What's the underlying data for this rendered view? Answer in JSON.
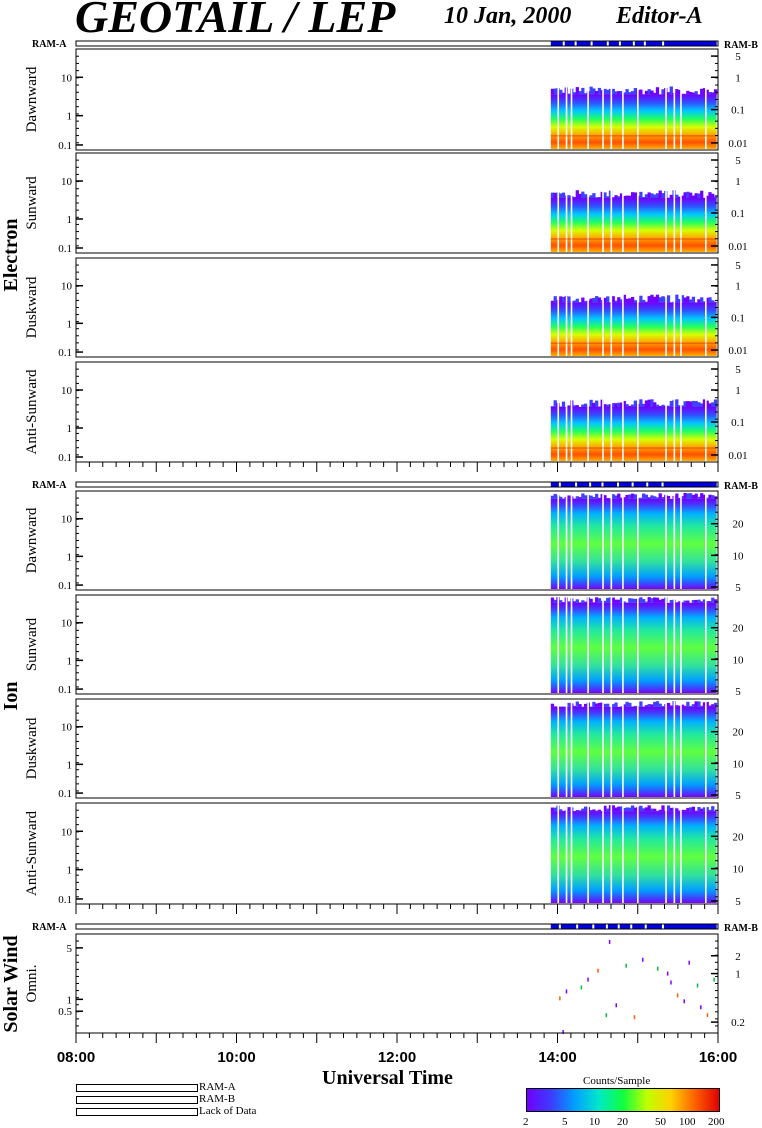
{
  "header": {
    "title": "GEOTAIL / LEP",
    "date": "10 Jan, 2000",
    "editor": "Editor-A"
  },
  "groups": [
    {
      "label": "Electron",
      "ram_left": "RAM-A",
      "ram_right": "RAM-B",
      "panels": [
        {
          "label": "Dawnward",
          "left_ticks": [
            "10",
            "1",
            "0.1"
          ],
          "right_ticks": [
            "5",
            "1",
            "0.1",
            "0.01"
          ]
        },
        {
          "label": "Sunward",
          "left_ticks": [
            "10",
            "1",
            "0.1"
          ],
          "right_ticks": [
            "5",
            "1",
            "0.1",
            "0.01"
          ]
        },
        {
          "label": "Duskward",
          "left_ticks": [
            "10",
            "1",
            "0.1"
          ],
          "right_ticks": [
            "5",
            "1",
            "0.1",
            "0.01"
          ]
        },
        {
          "label": "Anti-Sunward",
          "left_ticks": [
            "10",
            "1",
            "0.1"
          ],
          "right_ticks": [
            "5",
            "1",
            "0.1",
            "0.01"
          ]
        }
      ]
    },
    {
      "label": "Ion",
      "ram_left": "RAM-A",
      "ram_right": "RAM-B",
      "panels": [
        {
          "label": "Dawnward",
          "left_ticks": [
            "10",
            "1",
            "0.1"
          ],
          "right_ticks": [
            "20",
            "10",
            "5"
          ]
        },
        {
          "label": "Sunward",
          "left_ticks": [
            "10",
            "1",
            "0.1"
          ],
          "right_ticks": [
            "20",
            "10",
            "5"
          ]
        },
        {
          "label": "Duskward",
          "left_ticks": [
            "10",
            "1",
            "0.1"
          ],
          "right_ticks": [
            "20",
            "10",
            "5"
          ]
        },
        {
          "label": "Anti-Sunward",
          "left_ticks": [
            "10",
            "1",
            "0.1"
          ],
          "right_ticks": [
            "20",
            "10",
            "5"
          ]
        }
      ]
    },
    {
      "label": "Solar Wind",
      "ram_left": "RAM-A",
      "ram_right": "RAM-B",
      "panels": [
        {
          "label": "Omni.",
          "left_ticks": [
            "5",
            "1",
            "0.5"
          ],
          "right_ticks": [
            "2",
            "1",
            "0.2"
          ]
        }
      ]
    }
  ],
  "chart_data": {
    "type": "heatmap",
    "xlabel": "Universal Time",
    "x_ticks": [
      "08:00",
      "10:00",
      "12:00",
      "14:00",
      "16:00"
    ],
    "xlim": [
      "08:00",
      "16:00"
    ],
    "data_coverage": [
      [
        "13:55",
        "15:59"
      ]
    ],
    "ram_mode": "RAM-A",
    "y_scale": "log",
    "colorbar": {
      "title": "Counts/Sample",
      "ticks": [
        "2",
        "5",
        "10",
        "20",
        "50",
        "100",
        "200"
      ],
      "scale": "log",
      "range": [
        2,
        200
      ]
    }
  },
  "legend": [
    {
      "label": "RAM-A",
      "color": "#0000e0"
    },
    {
      "label": "RAM-B",
      "color": "#e00000"
    },
    {
      "label": "Lack of Data",
      "color": "#ffffff"
    }
  ]
}
